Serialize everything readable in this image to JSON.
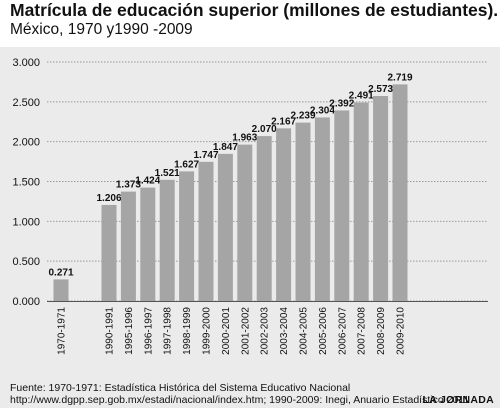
{
  "header": {
    "title": "Matrícula de educación superior (millones de estudiantes).",
    "subtitle": "México, 1970 y1990 -2009"
  },
  "footer": {
    "source_line1": "Fuente: 1970-1971: Estadística Histórica del Sistema Educativo Nacional",
    "source_line2": "http://www.dgpp.sep.gob.mx/estadi/nacional/index.htm; 1990-2009: Inegi, Anuario Estadístico 2011",
    "brand": "LA JORNADA"
  },
  "colors": {
    "bar": "#a5a5a5",
    "panel": "#ebebeb",
    "grid": "#9a9a9a",
    "text": "#111111"
  },
  "chart_data": {
    "type": "bar",
    "categories": [
      "1970-1971",
      "1990-1991",
      "1995-1996",
      "1996-1997",
      "1997-1998",
      "1998-1999",
      "1999-2000",
      "2000-2001",
      "2001-2002",
      "2002-2003",
      "2003-2004",
      "2004-2005",
      "2005-2006",
      "2006-2007",
      "2007-2008",
      "2008-2009",
      "2009-2010"
    ],
    "values": [
      0.271,
      1.206,
      1.373,
      1.424,
      1.521,
      1.627,
      1.747,
      1.847,
      1.963,
      2.07,
      2.167,
      2.239,
      2.304,
      2.392,
      2.491,
      2.573,
      2.719
    ],
    "value_labels": [
      "0.271",
      "1.206",
      "1.373",
      "1.424",
      "1.521",
      "1.627",
      "1.747",
      "1.847",
      "1.963",
      "2.070",
      "2.167",
      "2.239",
      "2.304",
      "2.392",
      "2.491",
      "2.573",
      "2.719"
    ],
    "gap_after_first": true,
    "y_ticks": [
      0,
      0.5,
      1,
      1.5,
      2,
      2.5,
      3
    ],
    "y_tick_labels": [
      "0.000",
      "0.500",
      "1.000",
      "1.500",
      "2.000",
      "2.500",
      "3.000"
    ],
    "ylim": [
      0,
      3
    ],
    "grid": true,
    "xlabel": "",
    "ylabel": ""
  }
}
